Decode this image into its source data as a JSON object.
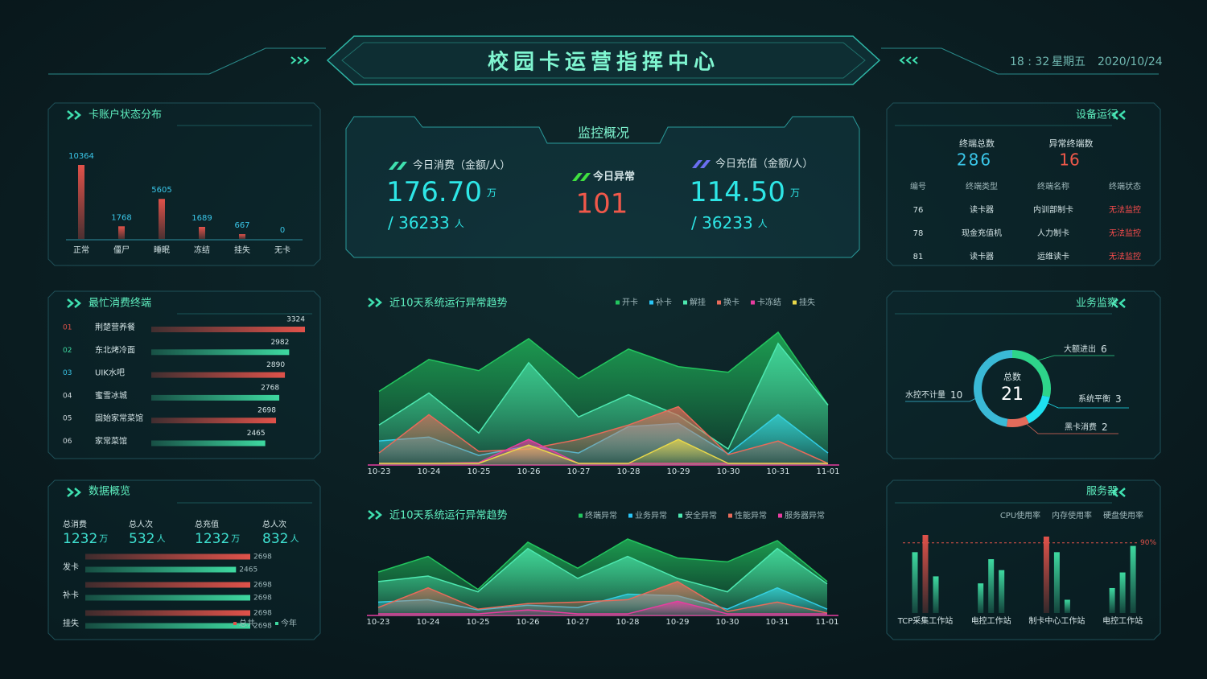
{
  "header": {
    "title": "校园卡运营指挥中心",
    "time": "18 : 32",
    "weekday": "星期五",
    "date": "2020/10/24"
  },
  "monitor": {
    "title": "监控概况",
    "consume": {
      "label": "今日消费（金额/人）",
      "value": "176.70",
      "unit": "万",
      "count": "/ 36233",
      "count_unit": "人"
    },
    "abnormal": {
      "label": "今日异常",
      "value": "101"
    },
    "recharge": {
      "label": "今日充值（金额/人）",
      "value": "114.50",
      "unit": "万",
      "count": "/ 36233",
      "count_unit": "人"
    }
  },
  "device": {
    "title": "设备运行",
    "total_label": "终端总数",
    "total": "286",
    "abnormal_label": "异常终端数",
    "abnormal": "16",
    "table": {
      "columns": [
        "编号",
        "终端类型",
        "终端名称",
        "终端状态"
      ],
      "rows": [
        [
          "76",
          "读卡器",
          "内训部制卡",
          "无法监控"
        ],
        [
          "78",
          "现金充值机",
          "人力制卡",
          "无法监控"
        ],
        [
          "81",
          "读卡器",
          "运维读卡",
          "无法监控"
        ]
      ]
    }
  },
  "overview": {
    "title": "数据概览",
    "stats": [
      {
        "label": "总消费",
        "value": "1232",
        "unit": "万"
      },
      {
        "label": "总人次",
        "value": "532",
        "unit": "人"
      },
      {
        "label": "总充值",
        "value": "1232",
        "unit": "万"
      },
      {
        "label": "总人次",
        "value": "832",
        "unit": "人"
      }
    ]
  },
  "chart_data": [
    {
      "type": "bar",
      "title": "卡账户状态分布",
      "categories": [
        "正常",
        "僵尸",
        "睡眠",
        "冻结",
        "挂失",
        "无卡"
      ],
      "values": [
        10364,
        1768,
        5605,
        1689,
        667,
        0
      ],
      "color": "#e0524a",
      "label_color": "#3ac6e8"
    },
    {
      "type": "hbar",
      "title": "最忙消费终端",
      "ranks": [
        "01",
        "02",
        "03",
        "04",
        "05",
        "06"
      ],
      "categories": [
        "荆楚营养餐",
        "东北烤冷面",
        "UIK水吧",
        "蜜雪冰城",
        "固始家常菜馆",
        "家常菜馆"
      ],
      "values": [
        3324,
        2982,
        2890,
        2768,
        2698,
        2465
      ],
      "colors": [
        "#e0524a",
        "#3ed9a0",
        "#e0524a",
        "#3ed9a0",
        "#e0524a",
        "#3ed9a0"
      ],
      "rank_colors": [
        "#e0524a",
        "#3ed9a0",
        "#3ac6e8",
        "#cfd8dc",
        "#cfd8dc",
        "#cfd8dc"
      ]
    },
    {
      "type": "hbar_grouped",
      "categories": [
        "发卡",
        "补卡",
        "挂失"
      ],
      "series": [
        {
          "name": "总共",
          "color": "#e0524a",
          "values": [
            2698,
            2698,
            2698
          ]
        },
        {
          "name": "今年",
          "color": "#3ed9a0",
          "values": [
            2465,
            2698,
            2698
          ]
        }
      ]
    },
    {
      "type": "area",
      "title": "近10天系统运行异常趋势",
      "x": [
        "10-23",
        "10-24",
        "10-25",
        "10-26",
        "10-27",
        "10-28",
        "10-29",
        "10-30",
        "10-31",
        "11-01"
      ],
      "series": [
        {
          "name": "开卡",
          "color": "#22c55e",
          "values": [
            92,
            132,
            118,
            158,
            108,
            145,
            123,
            116,
            166,
            75
          ]
        },
        {
          "name": "补卡",
          "color": "#29c5f6",
          "values": [
            30,
            35,
            12,
            24,
            15,
            48,
            52,
            14,
            63,
            15
          ]
        },
        {
          "name": "解挂",
          "color": "#4de8b0",
          "values": [
            50,
            90,
            40,
            128,
            60,
            88,
            62,
            20,
            152,
            75
          ]
        },
        {
          "name": "换卡",
          "color": "#e86b5a",
          "values": [
            15,
            63,
            17,
            20,
            32,
            50,
            73,
            13,
            30,
            2
          ]
        },
        {
          "name": "卡冻结",
          "color": "#e83ca0",
          "values": [
            2,
            2,
            3,
            32,
            2,
            2,
            2,
            2,
            2,
            2
          ]
        },
        {
          "name": "挂失",
          "color": "#e8d84a",
          "values": [
            2,
            2,
            2,
            25,
            2,
            2,
            32,
            2,
            2,
            2
          ]
        }
      ]
    },
    {
      "type": "area",
      "title": "近10天系统运行异常趋势",
      "x": [
        "10-23",
        "10-24",
        "10-25",
        "10-26",
        "10-27",
        "10-28",
        "10-29",
        "10-30",
        "10-31",
        "11-01"
      ],
      "series": [
        {
          "name": "终端异常",
          "color": "#22c55e",
          "values": [
            55,
            75,
            33,
            93,
            60,
            97,
            73,
            68,
            95,
            43
          ]
        },
        {
          "name": "业务异常",
          "color": "#29c5f6",
          "values": [
            17,
            20,
            7,
            13,
            10,
            27,
            25,
            8,
            35,
            8
          ]
        },
        {
          "name": "安全异常",
          "color": "#4de8b0",
          "values": [
            43,
            50,
            30,
            85,
            47,
            75,
            47,
            30,
            85,
            40
          ]
        },
        {
          "name": "性能异常",
          "color": "#e86b5a",
          "values": [
            10,
            35,
            8,
            15,
            17,
            20,
            43,
            5,
            17,
            3
          ]
        },
        {
          "name": "服务器异常",
          "color": "#e83ca0",
          "values": [
            2,
            2,
            2,
            7,
            2,
            2,
            18,
            2,
            2,
            2
          ]
        }
      ]
    },
    {
      "type": "donut",
      "title": "业务监察",
      "center_label": "总数",
      "center_value": 21,
      "categories": [
        "大额进出",
        "系统平衡",
        "黑卡消费",
        "水控不计量"
      ],
      "values": [
        6,
        3,
        2,
        10
      ],
      "colors": [
        "#2ed48a",
        "#1ee0f0",
        "#e36b5b",
        "#3ab9d6"
      ]
    },
    {
      "type": "bar_grouped",
      "title": "服务器",
      "categories": [
        "TCP采集工作站",
        "电控工作站",
        "制卡中心工作站",
        "电控工作站"
      ],
      "series": [
        {
          "name": "CPU使用率",
          "color": "#3ed9a0",
          "values": [
            78,
            38,
            98,
            32
          ]
        },
        {
          "name": "内存使用率",
          "color": "#3ed9a0",
          "values": [
            100,
            69,
            78,
            52
          ]
        },
        {
          "name": "硬盘使用率",
          "color": "#3ed9a0",
          "values": [
            47,
            55,
            17,
            86
          ]
        }
      ],
      "threshold": {
        "value": 90,
        "label": "90%"
      },
      "alert_color": "#e0524a"
    }
  ]
}
